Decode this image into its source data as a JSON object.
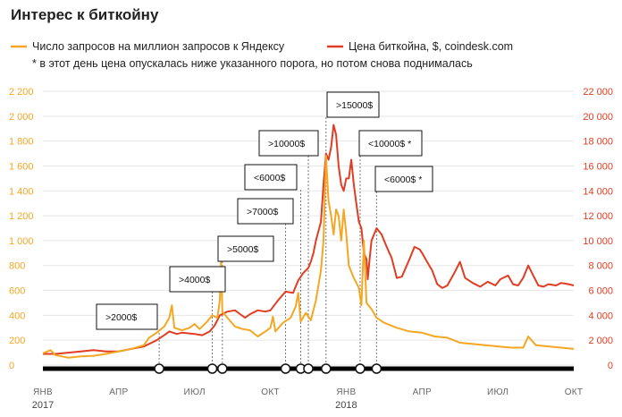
{
  "colors": {
    "interest": "#f5a623",
    "price": "#e03d22",
    "left_axis": "#f5a623",
    "right_axis": "#e03d22",
    "timeline": "#000000",
    "marker_line": "#777777"
  },
  "chart_data": {
    "type": "line",
    "title": "Интерес к биткойну",
    "legend": {
      "placement": "top-left",
      "entries": [
        "Число запросов на миллион запросов к Яндексу",
        "Цена биткойна, $, coindesk.com"
      ],
      "note": "* в этот день цена опускалась ниже указанного порога, но потом снова поднималась"
    },
    "x_axis": {
      "range_months": [
        0,
        21
      ],
      "ticks": [
        {
          "m": 0,
          "label": "ЯНВ",
          "year": "2017"
        },
        {
          "m": 3,
          "label": "АПР",
          "year": ""
        },
        {
          "m": 6,
          "label": "ИЮЛ",
          "year": ""
        },
        {
          "m": 9,
          "label": "ОКТ",
          "year": ""
        },
        {
          "m": 12,
          "label": "ЯНВ",
          "year": "2018"
        },
        {
          "m": 15,
          "label": "АПР",
          "year": ""
        },
        {
          "m": 18,
          "label": "ИЮЛ",
          "year": ""
        },
        {
          "m": 21,
          "label": "ОКТ",
          "year": ""
        }
      ]
    },
    "y_left": {
      "ylim": [
        0,
        2200
      ],
      "ticks": [
        "0",
        "200",
        "400",
        "600",
        "800",
        "1 000",
        "1 200",
        "1 400",
        "1 600",
        "1 800",
        "2 000",
        "2 200"
      ]
    },
    "y_right": {
      "ylim": [
        0,
        22000
      ],
      "ticks": [
        "0",
        "2 000",
        "4 000",
        "6 000",
        "8 000",
        "10 000",
        "12 000",
        "14 000",
        "16 000",
        "18 000",
        "20 000",
        "22 000"
      ]
    },
    "grid": true,
    "series": [
      {
        "name": "Число запросов на миллион запросов к Яндексу",
        "axis": "left",
        "points": [
          [
            0.0,
            95
          ],
          [
            0.3,
            120
          ],
          [
            0.5,
            80
          ],
          [
            1.0,
            60
          ],
          [
            1.5,
            70
          ],
          [
            2.0,
            75
          ],
          [
            2.5,
            90
          ],
          [
            3.0,
            110
          ],
          [
            3.5,
            130
          ],
          [
            4.0,
            160
          ],
          [
            4.2,
            220
          ],
          [
            4.5,
            260
          ],
          [
            4.8,
            310
          ],
          [
            5.0,
            380
          ],
          [
            5.1,
            480
          ],
          [
            5.2,
            300
          ],
          [
            5.5,
            280
          ],
          [
            5.8,
            300
          ],
          [
            6.0,
            330
          ],
          [
            6.2,
            290
          ],
          [
            6.5,
            350
          ],
          [
            6.7,
            400
          ],
          [
            6.9,
            380
          ],
          [
            7.0,
            520
          ],
          [
            7.05,
            850
          ],
          [
            7.1,
            430
          ],
          [
            7.3,
            380
          ],
          [
            7.6,
            310
          ],
          [
            7.9,
            290
          ],
          [
            8.2,
            280
          ],
          [
            8.5,
            230
          ],
          [
            8.8,
            270
          ],
          [
            9.0,
            300
          ],
          [
            9.1,
            390
          ],
          [
            9.2,
            270
          ],
          [
            9.5,
            340
          ],
          [
            9.8,
            380
          ],
          [
            10.0,
            470
          ],
          [
            10.1,
            580
          ],
          [
            10.2,
            350
          ],
          [
            10.4,
            420
          ],
          [
            10.6,
            360
          ],
          [
            10.8,
            520
          ],
          [
            10.9,
            640
          ],
          [
            11.0,
            760
          ],
          [
            11.1,
            1000
          ],
          [
            11.2,
            1680
          ],
          [
            11.3,
            1320
          ],
          [
            11.4,
            1200
          ],
          [
            11.5,
            1050
          ],
          [
            11.6,
            1250
          ],
          [
            11.7,
            1200
          ],
          [
            11.8,
            1000
          ],
          [
            11.9,
            1250
          ],
          [
            12.0,
            1060
          ],
          [
            12.1,
            800
          ],
          [
            12.3,
            700
          ],
          [
            12.5,
            620
          ],
          [
            12.6,
            480
          ],
          [
            12.7,
            1000
          ],
          [
            12.8,
            500
          ],
          [
            13.0,
            450
          ],
          [
            13.2,
            380
          ],
          [
            13.5,
            340
          ],
          [
            14.0,
            300
          ],
          [
            14.5,
            270
          ],
          [
            15.0,
            260
          ],
          [
            15.5,
            230
          ],
          [
            16.0,
            220
          ],
          [
            16.5,
            180
          ],
          [
            17.0,
            170
          ],
          [
            17.5,
            160
          ],
          [
            18.0,
            150
          ],
          [
            18.5,
            140
          ],
          [
            19.0,
            140
          ],
          [
            19.2,
            230
          ],
          [
            19.5,
            160
          ],
          [
            20.0,
            150
          ],
          [
            20.5,
            140
          ],
          [
            21.0,
            130
          ]
        ]
      },
      {
        "name": "Цена биткойна, $, coindesk.com",
        "axis": "right",
        "points": [
          [
            0.0,
            900
          ],
          [
            0.5,
            900
          ],
          [
            1.0,
            1000
          ],
          [
            1.5,
            1100
          ],
          [
            2.0,
            1200
          ],
          [
            2.5,
            1100
          ],
          [
            3.0,
            1100
          ],
          [
            3.5,
            1300
          ],
          [
            4.0,
            1500
          ],
          [
            4.5,
            2000
          ],
          [
            4.8,
            2400
          ],
          [
            5.0,
            2700
          ],
          [
            5.3,
            2500
          ],
          [
            5.5,
            2600
          ],
          [
            6.0,
            2500
          ],
          [
            6.3,
            2400
          ],
          [
            6.6,
            2700
          ],
          [
            6.8,
            3200
          ],
          [
            7.0,
            4000
          ],
          [
            7.3,
            4300
          ],
          [
            7.6,
            4400
          ],
          [
            7.8,
            4100
          ],
          [
            8.0,
            3800
          ],
          [
            8.2,
            4100
          ],
          [
            8.5,
            4400
          ],
          [
            8.8,
            4300
          ],
          [
            9.0,
            4400
          ],
          [
            9.3,
            5200
          ],
          [
            9.6,
            5900
          ],
          [
            9.9,
            5800
          ],
          [
            10.1,
            6800
          ],
          [
            10.3,
            7400
          ],
          [
            10.5,
            7800
          ],
          [
            10.6,
            8300
          ],
          [
            10.7,
            9000
          ],
          [
            10.8,
            10000
          ],
          [
            11.0,
            11500
          ],
          [
            11.1,
            14500
          ],
          [
            11.2,
            17000
          ],
          [
            11.3,
            16500
          ],
          [
            11.4,
            17500
          ],
          [
            11.5,
            19300
          ],
          [
            11.6,
            18500
          ],
          [
            11.7,
            16000
          ],
          [
            11.8,
            14500
          ],
          [
            11.9,
            14000
          ],
          [
            12.0,
            15000
          ],
          [
            12.1,
            15000
          ],
          [
            12.2,
            16500
          ],
          [
            12.3,
            14500
          ],
          [
            12.4,
            13000
          ],
          [
            12.5,
            11500
          ],
          [
            12.6,
            11000
          ],
          [
            12.7,
            9000
          ],
          [
            12.8,
            8500
          ],
          [
            12.85,
            6900
          ],
          [
            12.9,
            8000
          ],
          [
            13.0,
            10000
          ],
          [
            13.2,
            11000
          ],
          [
            13.4,
            10500
          ],
          [
            13.6,
            9500
          ],
          [
            13.8,
            8600
          ],
          [
            14.0,
            7000
          ],
          [
            14.2,
            7100
          ],
          [
            14.5,
            8500
          ],
          [
            14.7,
            9500
          ],
          [
            14.9,
            9300
          ],
          [
            15.0,
            9000
          ],
          [
            15.2,
            8300
          ],
          [
            15.4,
            7600
          ],
          [
            15.6,
            6500
          ],
          [
            15.8,
            6200
          ],
          [
            16.0,
            6400
          ],
          [
            16.3,
            7500
          ],
          [
            16.5,
            8300
          ],
          [
            16.7,
            7000
          ],
          [
            17.0,
            6600
          ],
          [
            17.3,
            6300
          ],
          [
            17.6,
            6700
          ],
          [
            17.9,
            6400
          ],
          [
            18.1,
            6900
          ],
          [
            18.4,
            7200
          ],
          [
            18.6,
            6500
          ],
          [
            18.8,
            6400
          ],
          [
            19.0,
            7000
          ],
          [
            19.2,
            8000
          ],
          [
            19.4,
            7200
          ],
          [
            19.6,
            6400
          ],
          [
            19.8,
            6300
          ],
          [
            20.0,
            6500
          ],
          [
            20.3,
            6400
          ],
          [
            20.5,
            6600
          ],
          [
            20.8,
            6500
          ],
          [
            21.0,
            6400
          ]
        ]
      }
    ],
    "annotations": [
      {
        "label": ">2000$",
        "m": 4.6
      },
      {
        "label": ">4000$",
        "m": 6.7
      },
      {
        "label": ">5000$",
        "m": 7.1
      },
      {
        "label": ">7000$",
        "m": 9.6
      },
      {
        "label": "<6000$",
        "m": 10.2
      },
      {
        "label": ">10000$",
        "m": 10.5
      },
      {
        "label": ">15000$",
        "m": 11.2
      },
      {
        "label": "<10000$ *",
        "m": 12.55
      },
      {
        "label": "<6000$ *",
        "m": 13.2
      }
    ]
  }
}
